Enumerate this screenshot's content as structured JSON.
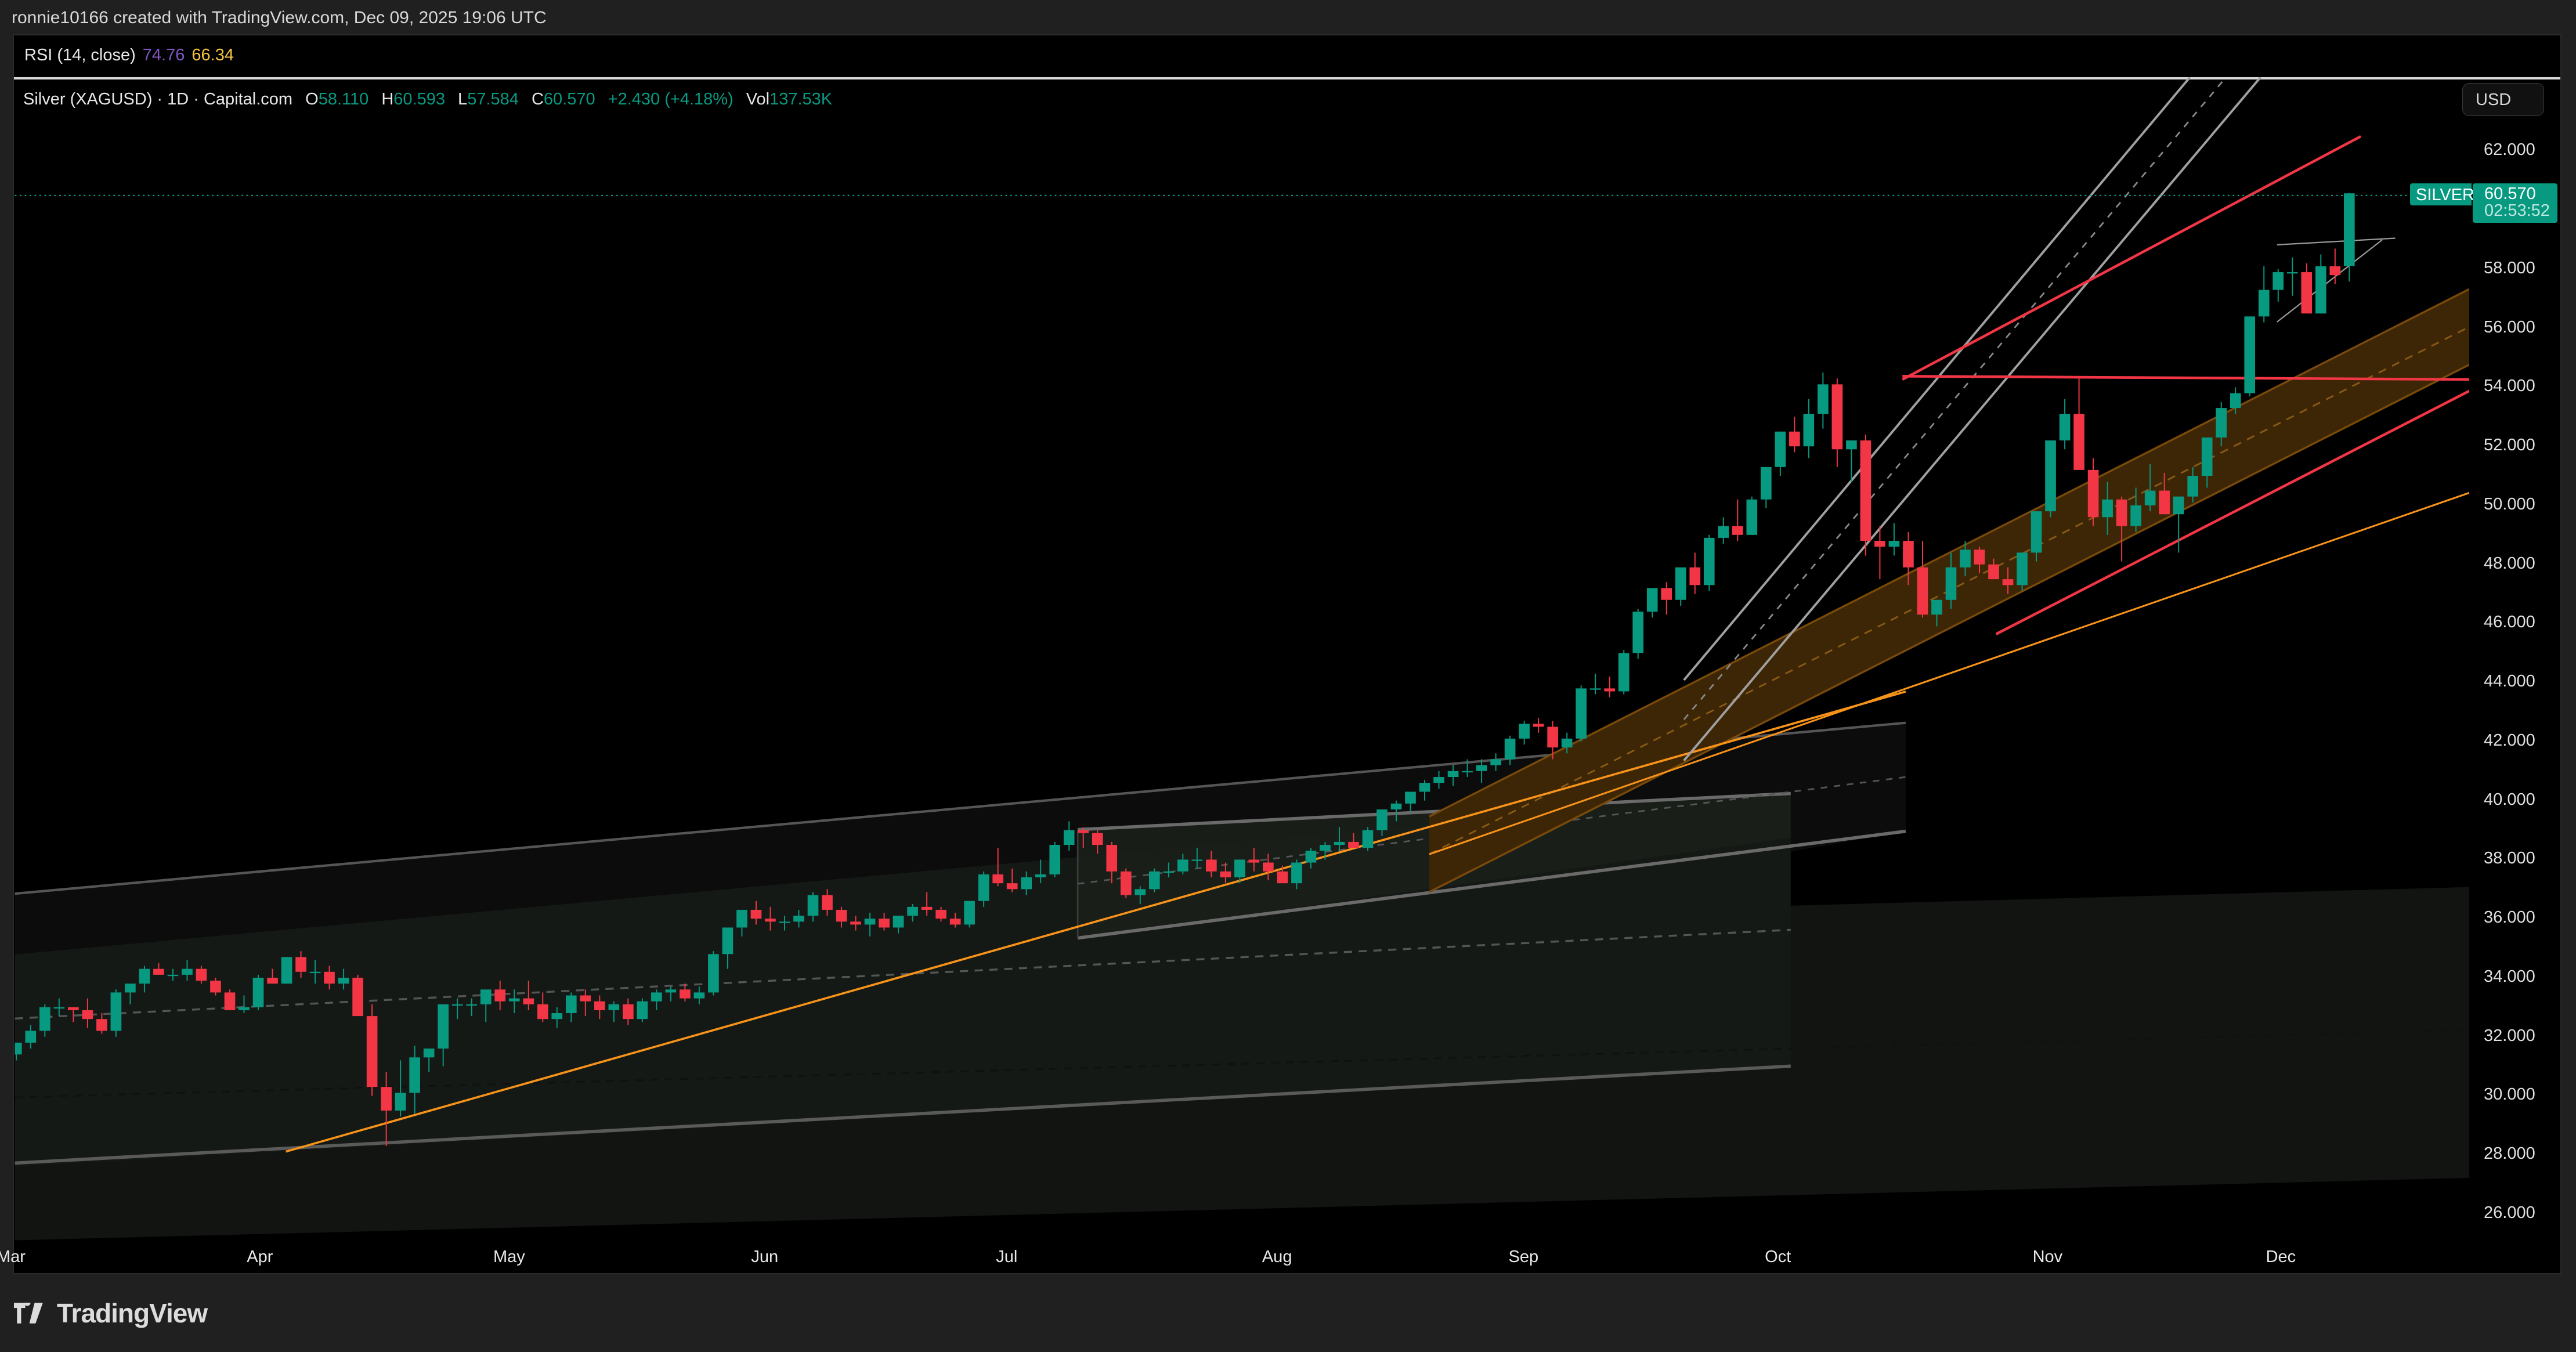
{
  "header": {
    "attribution": "ronnie10166 created with TradingView.com, Dec 09, 2025 19:06 UTC"
  },
  "rsi": {
    "label": "RSI (14, close)",
    "value": "74.76",
    "ma_value": "66.34",
    "value_color": "#7e57c2",
    "ma_color": "#f6c343"
  },
  "legend": {
    "symbol": "Silver (XAGUSD) · 1D · Capital.com",
    "o_label": "O",
    "o": "58.110",
    "h_label": "H",
    "h": "60.593",
    "l_label": "L",
    "l": "57.584",
    "c_label": "C",
    "c": "60.570",
    "change": "+2.430 (+4.18%)",
    "vol_label": "Vol",
    "vol": "137.53K"
  },
  "price_scale": {
    "currency_button": "USD",
    "ticks": [
      "62.000",
      "58.000",
      "56.000",
      "54.000",
      "52.000",
      "50.000",
      "48.000",
      "46.000",
      "44.000",
      "42.000",
      "40.000",
      "38.000",
      "36.000",
      "34.000",
      "32.000",
      "30.000",
      "28.000",
      "26.000"
    ],
    "last_price": {
      "symbol_tag": "SILVER",
      "price": "60.570",
      "countdown": "02:53:52",
      "color": "#089981"
    }
  },
  "time_scale": {
    "ticks": [
      "Mar",
      "Apr",
      "May",
      "Jun",
      "Jul",
      "Aug",
      "Sep",
      "Oct",
      "Nov",
      "Dec"
    ]
  },
  "branding": {
    "logo_text": "TradingView"
  },
  "colors": {
    "up": "#089981",
    "down": "#f23645",
    "trendline_orange": "#f7931a",
    "trendline_red": "#f23645",
    "channel_gray": "#8a8a8a",
    "orange_fill": "#3d2605"
  },
  "chart_data": {
    "type": "candlestick",
    "title": "Silver (XAGUSD) · 1D · Capital.com",
    "xlabel": "",
    "ylabel": "USD",
    "ylim": [
      25.5,
      63.5
    ],
    "x_ticks": [
      "Mar",
      "Apr",
      "May",
      "Jun",
      "Jul",
      "Aug",
      "Sep",
      "Oct",
      "Nov",
      "Dec"
    ],
    "y_ticks": [
      26,
      28,
      30,
      32,
      34,
      36,
      38,
      40,
      42,
      44,
      46,
      48,
      50,
      52,
      54,
      56,
      58,
      60,
      62
    ],
    "last": {
      "open": 58.11,
      "high": 60.593,
      "low": 57.584,
      "close": 60.57,
      "change": 2.43,
      "change_pct": 4.18,
      "volume": "137.53K"
    },
    "indicators": {
      "rsi_14": 74.76,
      "rsi_ma": 66.34
    },
    "candles_ohlc": [
      [
        31.4,
        31.8,
        31.2,
        31.8
      ],
      [
        31.8,
        32.4,
        31.6,
        32.2
      ],
      [
        32.2,
        33.1,
        32.0,
        33.0
      ],
      [
        33.0,
        33.3,
        32.7,
        33.0
      ],
      [
        33.0,
        33.0,
        32.5,
        32.9
      ],
      [
        32.9,
        33.3,
        32.3,
        32.6
      ],
      [
        32.6,
        32.8,
        32.1,
        32.2
      ],
      [
        32.2,
        33.6,
        32.0,
        33.5
      ],
      [
        33.5,
        33.8,
        33.1,
        33.8
      ],
      [
        33.8,
        34.4,
        33.5,
        34.3
      ],
      [
        34.3,
        34.5,
        34.1,
        34.1
      ],
      [
        34.1,
        34.3,
        33.9,
        34.1
      ],
      [
        34.1,
        34.6,
        33.9,
        34.3
      ],
      [
        34.3,
        34.4,
        33.8,
        33.9
      ],
      [
        33.9,
        34.0,
        33.4,
        33.5
      ],
      [
        33.5,
        33.6,
        32.9,
        32.9
      ],
      [
        32.9,
        33.4,
        32.8,
        33.0
      ],
      [
        33.0,
        34.1,
        32.9,
        34.0
      ],
      [
        34.0,
        34.3,
        33.8,
        33.8
      ],
      [
        33.8,
        34.7,
        33.8,
        34.7
      ],
      [
        34.7,
        34.9,
        34.0,
        34.2
      ],
      [
        34.2,
        34.6,
        33.8,
        34.2
      ],
      [
        34.2,
        34.4,
        33.6,
        33.8
      ],
      [
        33.8,
        34.3,
        33.6,
        34.0
      ],
      [
        34.0,
        34.1,
        32.8,
        32.7
      ],
      [
        32.7,
        33.1,
        30.0,
        30.3
      ],
      [
        30.3,
        30.8,
        28.3,
        29.5
      ],
      [
        29.5,
        31.2,
        29.3,
        30.1
      ],
      [
        30.1,
        31.7,
        29.4,
        31.3
      ],
      [
        31.3,
        31.5,
        30.8,
        31.6
      ],
      [
        31.6,
        33.1,
        31.0,
        33.1
      ],
      [
        33.1,
        33.3,
        32.6,
        33.1
      ],
      [
        33.1,
        33.3,
        32.7,
        33.1
      ],
      [
        33.1,
        33.6,
        32.5,
        33.6
      ],
      [
        33.6,
        33.9,
        32.9,
        33.2
      ],
      [
        33.2,
        33.6,
        32.8,
        33.3
      ],
      [
        33.3,
        33.9,
        32.9,
        33.1
      ],
      [
        33.1,
        33.5,
        32.5,
        32.6
      ],
      [
        32.6,
        33.0,
        32.3,
        32.8
      ],
      [
        32.8,
        33.5,
        32.5,
        33.4
      ],
      [
        33.4,
        33.6,
        32.7,
        33.2
      ],
      [
        33.2,
        33.4,
        32.6,
        32.9
      ],
      [
        32.9,
        33.2,
        32.5,
        33.1
      ],
      [
        33.1,
        33.3,
        32.4,
        32.6
      ],
      [
        32.6,
        33.3,
        32.5,
        33.2
      ],
      [
        33.2,
        33.6,
        32.9,
        33.5
      ],
      [
        33.5,
        33.7,
        33.2,
        33.6
      ],
      [
        33.6,
        33.8,
        33.2,
        33.3
      ],
      [
        33.3,
        33.7,
        33.1,
        33.5
      ],
      [
        33.5,
        34.9,
        33.4,
        34.8
      ],
      [
        34.8,
        35.4,
        34.3,
        35.7
      ],
      [
        35.7,
        36.2,
        35.4,
        36.3
      ],
      [
        36.3,
        36.6,
        35.8,
        36.0
      ],
      [
        36.0,
        36.4,
        35.6,
        35.9
      ],
      [
        35.9,
        36.1,
        35.6,
        35.9
      ],
      [
        35.9,
        36.3,
        35.7,
        36.1
      ],
      [
        36.1,
        36.9,
        35.9,
        36.8
      ],
      [
        36.8,
        37.0,
        36.1,
        36.3
      ],
      [
        36.3,
        36.4,
        35.7,
        35.9
      ],
      [
        35.9,
        36.1,
        35.6,
        35.8
      ],
      [
        35.8,
        36.2,
        35.4,
        36.0
      ],
      [
        36.0,
        36.2,
        35.6,
        35.7
      ],
      [
        35.7,
        36.1,
        35.5,
        36.1
      ],
      [
        36.1,
        36.5,
        35.9,
        36.4
      ],
      [
        36.4,
        36.9,
        36.1,
        36.3
      ],
      [
        36.3,
        36.4,
        35.9,
        36.0
      ],
      [
        36.0,
        36.2,
        35.7,
        35.8
      ],
      [
        35.8,
        36.6,
        35.7,
        36.6
      ],
      [
        36.6,
        37.6,
        36.4,
        37.5
      ],
      [
        37.5,
        38.4,
        37.1,
        37.2
      ],
      [
        37.2,
        37.7,
        36.9,
        37.0
      ],
      [
        37.0,
        37.6,
        36.8,
        37.4
      ],
      [
        37.4,
        38.0,
        37.2,
        37.5
      ],
      [
        37.5,
        38.6,
        37.4,
        38.5
      ],
      [
        38.5,
        39.3,
        38.3,
        39.0
      ],
      [
        39.0,
        39.1,
        38.4,
        38.9
      ],
      [
        38.9,
        39.0,
        38.2,
        38.5
      ],
      [
        38.5,
        38.6,
        37.2,
        37.6
      ],
      [
        37.6,
        37.7,
        36.7,
        36.8
      ],
      [
        36.8,
        37.1,
        36.5,
        37.0
      ],
      [
        37.0,
        37.7,
        36.9,
        37.6
      ],
      [
        37.6,
        37.9,
        37.4,
        37.6
      ],
      [
        37.6,
        38.2,
        37.5,
        38.0
      ],
      [
        38.0,
        38.4,
        37.7,
        38.0
      ],
      [
        38.0,
        38.3,
        37.4,
        37.6
      ],
      [
        37.6,
        37.9,
        37.2,
        37.4
      ],
      [
        37.4,
        38.0,
        37.2,
        38.0
      ],
      [
        38.0,
        38.4,
        37.6,
        37.9
      ],
      [
        37.9,
        38.2,
        37.3,
        37.6
      ],
      [
        37.6,
        37.8,
        37.3,
        37.2
      ],
      [
        37.2,
        38.0,
        37.0,
        37.9
      ],
      [
        37.9,
        38.4,
        37.7,
        38.3
      ],
      [
        38.3,
        38.6,
        38.0,
        38.5
      ],
      [
        38.5,
        39.1,
        38.3,
        38.6
      ],
      [
        38.6,
        38.9,
        38.4,
        38.4
      ],
      [
        38.4,
        39.1,
        38.3,
        39.0
      ],
      [
        39.0,
        39.7,
        38.8,
        39.7
      ],
      [
        39.7,
        40.0,
        39.3,
        39.9
      ],
      [
        39.9,
        40.2,
        39.6,
        40.3
      ],
      [
        40.3,
        40.7,
        40.0,
        40.6
      ],
      [
        40.6,
        41.0,
        40.4,
        40.8
      ],
      [
        40.8,
        41.2,
        40.5,
        41.0
      ],
      [
        41.0,
        41.4,
        40.8,
        41.0
      ],
      [
        41.0,
        41.4,
        40.6,
        41.2
      ],
      [
        41.2,
        41.6,
        41.0,
        41.4
      ],
      [
        41.4,
        42.2,
        41.2,
        42.1
      ],
      [
        42.1,
        42.7,
        41.9,
        42.6
      ],
      [
        42.6,
        42.8,
        42.3,
        42.5
      ],
      [
        42.5,
        42.7,
        41.4,
        41.8
      ],
      [
        41.8,
        42.3,
        41.6,
        42.1
      ],
      [
        42.1,
        43.9,
        42.0,
        43.8
      ],
      [
        43.8,
        44.3,
        43.6,
        43.8
      ],
      [
        43.8,
        44.2,
        43.5,
        43.7
      ],
      [
        43.7,
        45.1,
        43.6,
        45.0
      ],
      [
        45.0,
        46.5,
        44.8,
        46.4
      ],
      [
        46.4,
        47.2,
        46.2,
        47.2
      ],
      [
        47.2,
        47.4,
        46.3,
        46.8
      ],
      [
        46.8,
        47.8,
        46.6,
        47.9
      ],
      [
        47.9,
        48.4,
        47.0,
        47.3
      ],
      [
        47.3,
        49.0,
        47.1,
        48.9
      ],
      [
        48.9,
        49.6,
        48.7,
        49.3
      ],
      [
        49.3,
        50.2,
        48.8,
        49.0
      ],
      [
        49.0,
        50.3,
        49.0,
        50.2
      ],
      [
        50.2,
        51.3,
        49.9,
        51.3
      ],
      [
        51.3,
        52.5,
        51.0,
        52.5
      ],
      [
        52.5,
        53.0,
        51.8,
        52.0
      ],
      [
        52.0,
        53.6,
        51.6,
        53.1
      ],
      [
        53.1,
        54.5,
        52.6,
        54.1
      ],
      [
        54.1,
        54.3,
        51.3,
        51.9
      ],
      [
        51.9,
        52.2,
        50.8,
        52.2
      ],
      [
        52.2,
        52.4,
        48.3,
        48.8
      ],
      [
        48.8,
        49.3,
        47.5,
        48.6
      ],
      [
        48.6,
        49.4,
        48.3,
        48.8
      ],
      [
        48.8,
        49.1,
        47.3,
        47.9
      ],
      [
        47.9,
        48.8,
        46.2,
        46.3
      ],
      [
        46.3,
        46.8,
        45.9,
        46.8
      ],
      [
        46.8,
        48.4,
        46.5,
        47.9
      ],
      [
        47.9,
        48.8,
        47.6,
        48.5
      ],
      [
        48.5,
        48.6,
        47.7,
        48.0
      ],
      [
        48.0,
        48.2,
        47.5,
        47.5
      ],
      [
        47.5,
        47.9,
        47.0,
        47.3
      ],
      [
        47.3,
        48.4,
        47.1,
        48.4
      ],
      [
        48.4,
        49.8,
        48.1,
        49.8
      ],
      [
        49.8,
        52.2,
        49.6,
        52.2
      ],
      [
        52.2,
        53.6,
        51.9,
        53.1
      ],
      [
        53.1,
        54.3,
        52.0,
        51.2
      ],
      [
        51.2,
        51.6,
        49.3,
        49.6
      ],
      [
        49.6,
        50.8,
        49.0,
        50.2
      ],
      [
        50.2,
        50.3,
        48.1,
        49.3
      ],
      [
        49.3,
        50.6,
        49.1,
        50.0
      ],
      [
        50.0,
        51.4,
        49.8,
        50.5
      ],
      [
        50.5,
        51.1,
        49.8,
        49.7
      ],
      [
        49.7,
        50.3,
        48.4,
        50.3
      ],
      [
        50.3,
        51.3,
        50.1,
        51.0
      ],
      [
        51.0,
        51.8,
        50.6,
        52.3
      ],
      [
        52.3,
        53.5,
        52.0,
        53.3
      ],
      [
        53.3,
        54.0,
        53.1,
        53.8
      ],
      [
        53.8,
        56.4,
        53.7,
        56.4
      ],
      [
        56.4,
        58.1,
        56.2,
        57.3
      ],
      [
        57.3,
        58.0,
        56.9,
        57.9
      ],
      [
        57.9,
        58.4,
        57.1,
        57.9
      ],
      [
        57.9,
        58.2,
        56.7,
        56.5
      ],
      [
        56.5,
        58.5,
        56.6,
        58.1
      ],
      [
        58.1,
        58.7,
        57.5,
        57.8
      ],
      [
        58.11,
        60.593,
        57.584,
        60.57
      ]
    ]
  }
}
